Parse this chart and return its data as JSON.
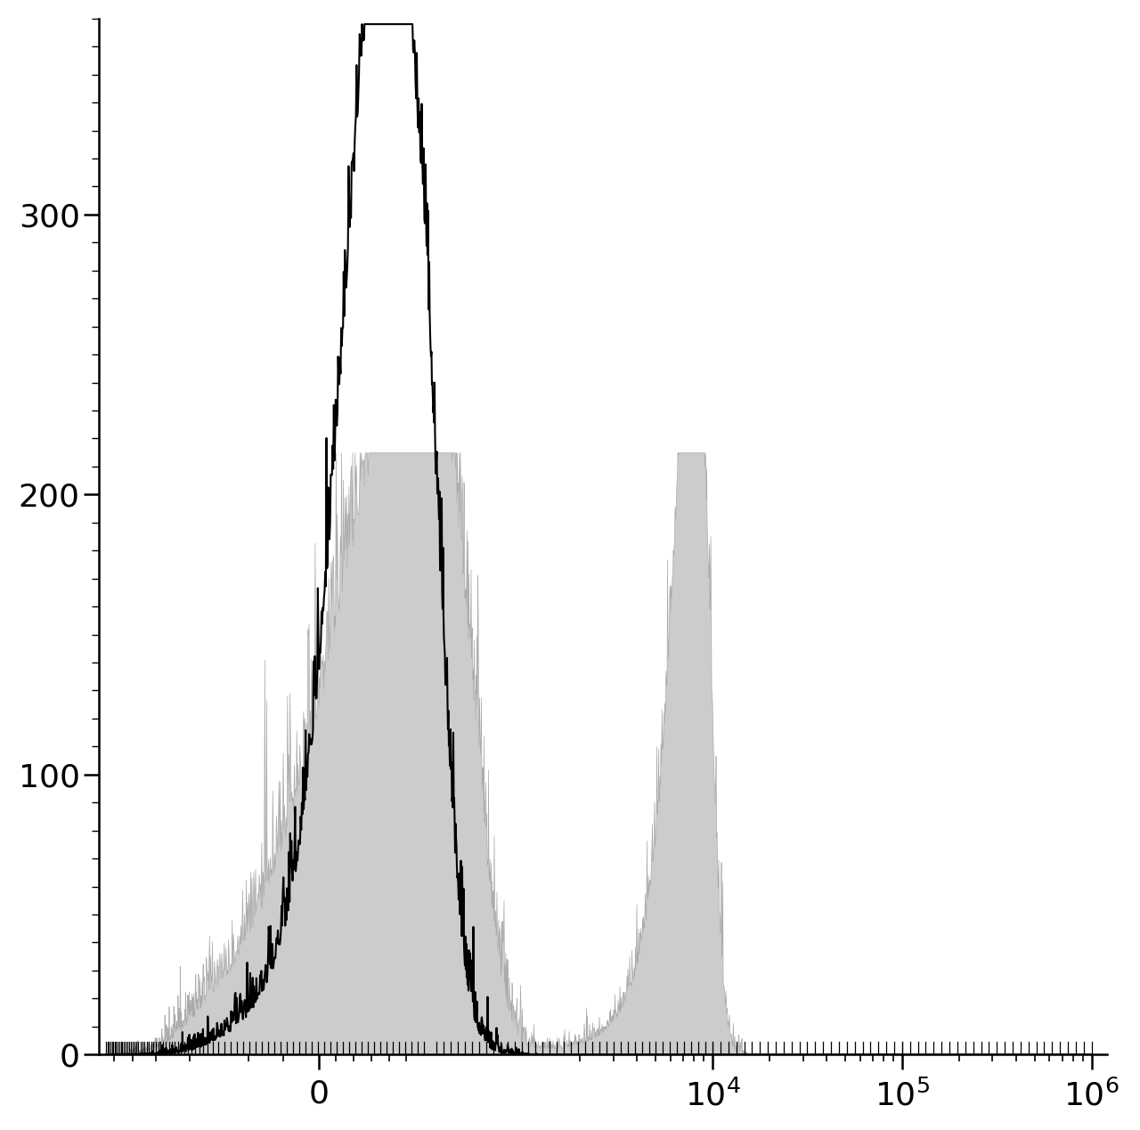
{
  "background_color": "#ffffff",
  "ylim": [
    0,
    370
  ],
  "yticks": [
    0,
    100,
    200,
    300
  ],
  "figure_width": 12.8,
  "figure_height": 12.69,
  "dpi": 100,
  "spine_color": "#000000",
  "gray_fill_color": "#cccccc",
  "gray_edge_color": "#aaaaaa",
  "black_line_color": "#000000",
  "note": "x-axis is symlog: linear region [-1000,200], then log to 10^6. Display mapping: 0->pos_of_zero_label, 10^4->pos_of_10^4. Peaks: black at ~300 (near 0), gray peak1 at ~600, gray peak2 at ~10^4"
}
